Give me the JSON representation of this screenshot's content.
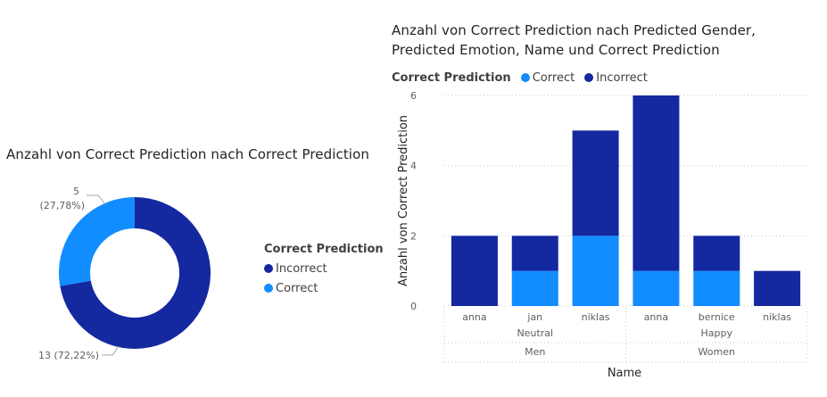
{
  "colors": {
    "incorrect": "#1428A0",
    "correct": "#118DFF",
    "grid": "#C8C8C8",
    "text": "#605E5C"
  },
  "chart_data": [
    {
      "type": "pie",
      "variant": "donut",
      "title": "Anzahl von Correct Prediction nach Correct Prediction",
      "legend_title": "Correct Prediction",
      "legend_position": "right",
      "slices": [
        {
          "name": "Incorrect",
          "value": 13,
          "label": "13 (72,22%)"
        },
        {
          "name": "Correct",
          "value": 5,
          "label_value": "5",
          "label_pct": "(27,78%)"
        }
      ]
    },
    {
      "type": "bar",
      "stacked": true,
      "title": "Anzahl von Correct Prediction nach Predicted Gender, Predicted Emotion, Name und Correct Prediction",
      "title_lines": [
        "Anzahl von Correct Prediction nach Predicted Gender,",
        "Predicted Emotion, Name und Correct Prediction"
      ],
      "legend_title": "Correct Prediction",
      "legend_position": "top-left",
      "xlabel": "Name",
      "ylabel": "Anzahl von Correct Prediction",
      "ylim": [
        0,
        6
      ],
      "yticks": [
        "0",
        "2",
        "4",
        "6"
      ],
      "categories": [
        "anna",
        "jan",
        "niklas",
        "anna",
        "bernice",
        "niklas"
      ],
      "emotion_groups": [
        {
          "label": "Neutral",
          "count": 3
        },
        {
          "label": "Happy",
          "count": 3
        }
      ],
      "gender_groups": [
        {
          "label": "Men",
          "count": 3
        },
        {
          "label": "Women",
          "count": 3
        }
      ],
      "series": [
        {
          "name": "Correct",
          "values": [
            0,
            1,
            2,
            1,
            1,
            0
          ]
        },
        {
          "name": "Incorrect",
          "values": [
            2,
            1,
            3,
            5,
            1,
            1
          ]
        }
      ]
    }
  ]
}
